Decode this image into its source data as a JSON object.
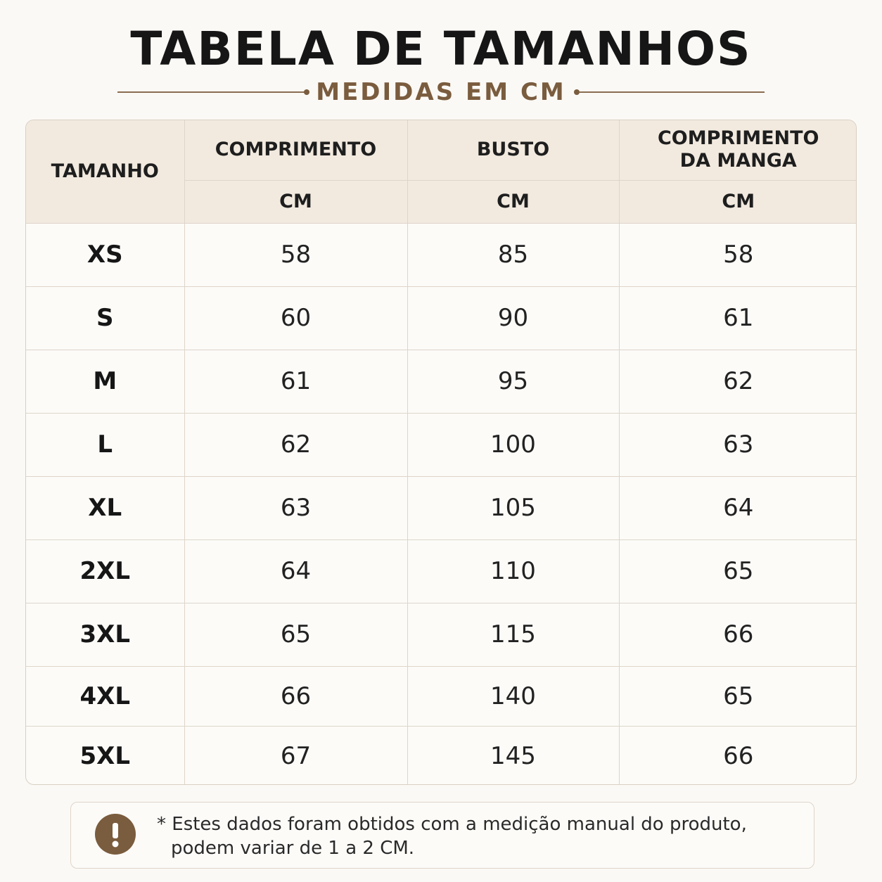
{
  "header": {
    "title": "TABELA DE TAMANHOS",
    "subtitle": "MEDIDAS EM CM"
  },
  "colors": {
    "accent": "#7a5c3e",
    "header_bg": "#f2eadf",
    "page_bg": "#fbf9f5"
  },
  "table": {
    "columns": [
      {
        "label_lines": [
          "TAMANHO"
        ],
        "unit": ""
      },
      {
        "label_lines": [
          "COMPRIMENTO"
        ],
        "unit": "CM"
      },
      {
        "label_lines": [
          "BUSTO"
        ],
        "unit": "CM"
      },
      {
        "label_lines": [
          "COMPRIMENTO",
          "DA MANGA"
        ],
        "unit": "CM"
      }
    ],
    "rows": [
      {
        "size": "XS",
        "comprimento": "58",
        "busto": "85",
        "manga": "58"
      },
      {
        "size": "S",
        "comprimento": "60",
        "busto": "90",
        "manga": "61"
      },
      {
        "size": "M",
        "comprimento": "61",
        "busto": "95",
        "manga": "62"
      },
      {
        "size": "L",
        "comprimento": "62",
        "busto": "100",
        "manga": "63"
      },
      {
        "size": "XL",
        "comprimento": "63",
        "busto": "105",
        "manga": "64"
      },
      {
        "size": "2XL",
        "comprimento": "64",
        "busto": "110",
        "manga": "65"
      },
      {
        "size": "3XL",
        "comprimento": "65",
        "busto": "115",
        "manga": "66"
      },
      {
        "size": "4XL",
        "comprimento": "66",
        "busto": "140",
        "manga": "65"
      },
      {
        "size": "5XL",
        "comprimento": "67",
        "busto": "145",
        "manga": "66"
      }
    ]
  },
  "note": {
    "icon": "exclamation-icon",
    "line1": "* Estes dados foram obtidos com a medição manual do produto,",
    "line2": "podem variar de 1 a 2 CM."
  }
}
